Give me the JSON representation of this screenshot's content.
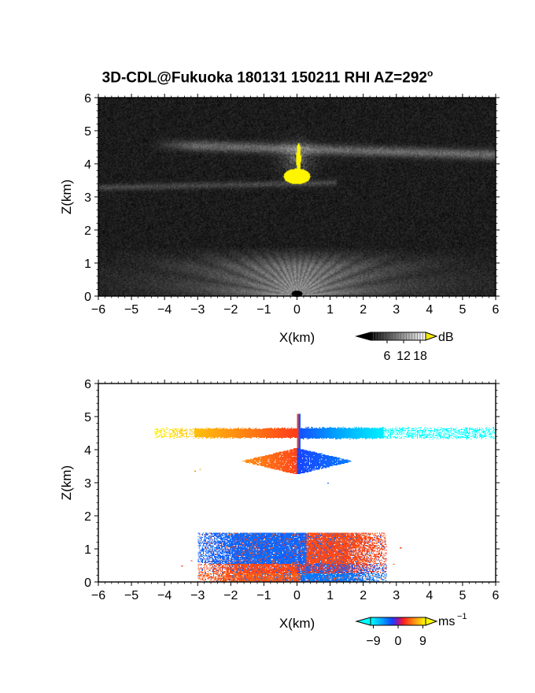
{
  "title": "3D-CDL@Fukuoka 180131 150211 RHI AZ=292",
  "title_sup": "o",
  "chart_data": [
    {
      "type": "heatmap",
      "name": "backscatter",
      "xlabel": "X(km)",
      "ylabel": "Z(km)",
      "xlim": [
        -6,
        6
      ],
      "ylim": [
        0,
        6
      ],
      "x_ticks": [
        "-6",
        "-5",
        "-4",
        "-3",
        "-2",
        "-1",
        "0",
        "1",
        "2",
        "3",
        "4",
        "5",
        "6"
      ],
      "y_ticks": [
        "0",
        "1",
        "2",
        "3",
        "4",
        "5",
        "6"
      ],
      "colorbar": {
        "unit": "dB",
        "ticks": [
          "6",
          "12",
          "18"
        ],
        "range": [
          0,
          20
        ]
      },
      "features": [
        {
          "kind": "layer",
          "x": [
            -4.5,
            6.0
          ],
          "z": 4.4,
          "level": 12
        },
        {
          "kind": "layer",
          "x": [
            -6.0,
            1.5
          ],
          "z": 3.4,
          "level": 8
        },
        {
          "kind": "cloud_core",
          "x": [
            -0.5,
            0.5
          ],
          "z": [
            3.3,
            3.9
          ],
          "level": 20
        },
        {
          "kind": "boundary_layer",
          "x": [
            -3.0,
            3.5
          ],
          "z": [
            0.0,
            1.5
          ],
          "level": 10
        }
      ]
    },
    {
      "type": "heatmap",
      "name": "doppler_velocity",
      "xlabel": "X(km)",
      "ylabel": "Z(km)",
      "xlim": [
        -6,
        6
      ],
      "ylim": [
        0,
        6
      ],
      "x_ticks": [
        "-6",
        "-5",
        "-4",
        "-3",
        "-2",
        "-1",
        "0",
        "1",
        "2",
        "3",
        "4",
        "5",
        "6"
      ],
      "y_ticks": [
        "0",
        "1",
        "2",
        "3",
        "4",
        "5",
        "6"
      ],
      "colorbar": {
        "unit": "ms",
        "unit_sup": "−1",
        "ticks": [
          "−9",
          "0",
          "9"
        ],
        "range": [
          -10,
          10
        ]
      },
      "features": [
        {
          "kind": "layer",
          "x": [
            -4.3,
            0.0
          ],
          "z": 4.5,
          "velocity_range": [
            4,
            9
          ]
        },
        {
          "kind": "layer",
          "x": [
            0.0,
            6.0
          ],
          "z": 4.5,
          "velocity_range": [
            -9,
            -6
          ]
        },
        {
          "kind": "cloud_core",
          "x": [
            -1.6,
            0.0
          ],
          "z": [
            3.3,
            3.9
          ],
          "velocity_range": [
            2,
            6
          ]
        },
        {
          "kind": "cloud_core",
          "x": [
            0.0,
            1.6
          ],
          "z": [
            3.3,
            3.9
          ],
          "velocity_range": [
            -4,
            -2
          ]
        },
        {
          "kind": "boundary_layer",
          "x": [
            -3.0,
            2.6
          ],
          "z": [
            0.0,
            1.5
          ],
          "velocity_range": [
            -4,
            4
          ]
        }
      ]
    }
  ]
}
